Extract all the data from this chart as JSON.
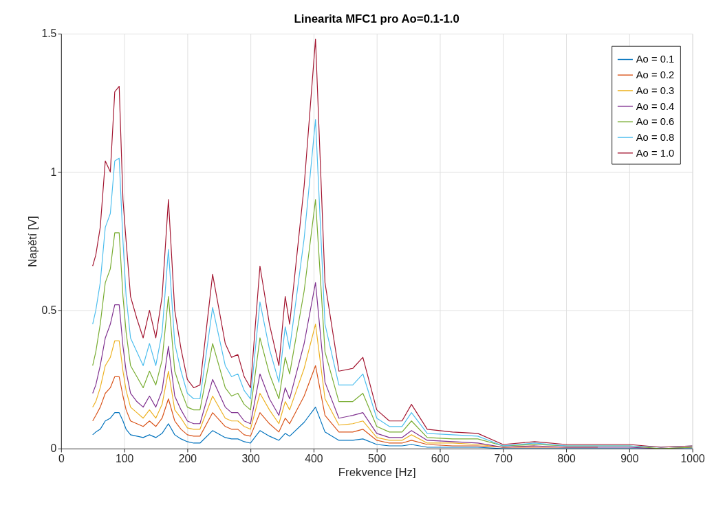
{
  "chart_data": {
    "type": "line",
    "title": "Linearita MFC1 pro Ao=0.1-1.0",
    "xlabel": "Frekvence [Hz]",
    "ylabel": "Napětí [V]",
    "x": [
      50,
      55,
      62,
      70,
      78,
      85,
      92,
      98,
      103,
      110,
      120,
      130,
      140,
      150,
      160,
      170,
      180,
      190,
      200,
      210,
      220,
      240,
      260,
      270,
      280,
      290,
      300,
      315,
      330,
      345,
      355,
      362,
      385,
      403,
      418,
      440,
      462,
      478,
      500,
      520,
      540,
      555,
      580,
      620,
      660,
      700,
      750,
      800,
      850,
      900,
      950,
      1000
    ],
    "xlim": [
      0,
      1000
    ],
    "xticks": [
      0,
      100,
      200,
      300,
      400,
      500,
      600,
      700,
      800,
      900,
      1000
    ],
    "ylim": [
      0,
      1.5
    ],
    "yticks": [
      0,
      0.5,
      1,
      1.5
    ],
    "grid": true,
    "legend": "top right",
    "line_style": "solid",
    "marker": "none",
    "series": [
      {
        "name": "Ao = 0.1",
        "color": "#0072bd",
        "values": [
          0.05,
          0.06,
          0.07,
          0.1,
          0.11,
          0.13,
          0.13,
          0.1,
          0.07,
          0.05,
          0.045,
          0.04,
          0.05,
          0.04,
          0.055,
          0.09,
          0.05,
          0.035,
          0.025,
          0.02,
          0.02,
          0.065,
          0.04,
          0.035,
          0.035,
          0.025,
          0.02,
          0.065,
          0.045,
          0.03,
          0.055,
          0.045,
          0.095,
          0.15,
          0.06,
          0.03,
          0.03,
          0.035,
          0.015,
          0.01,
          0.01,
          0.015,
          0.005,
          0.005,
          0.005,
          0,
          0,
          0,
          0,
          0,
          0,
          0
        ]
      },
      {
        "name": "Ao = 0.2",
        "color": "#d95319",
        "values": [
          0.1,
          0.12,
          0.15,
          0.2,
          0.22,
          0.26,
          0.26,
          0.19,
          0.14,
          0.1,
          0.09,
          0.08,
          0.1,
          0.08,
          0.11,
          0.18,
          0.1,
          0.07,
          0.05,
          0.045,
          0.045,
          0.13,
          0.08,
          0.07,
          0.07,
          0.05,
          0.045,
          0.13,
          0.09,
          0.06,
          0.11,
          0.09,
          0.19,
          0.3,
          0.12,
          0.06,
          0.06,
          0.07,
          0.03,
          0.02,
          0.02,
          0.03,
          0.015,
          0.01,
          0.01,
          0.005,
          0.005,
          0.005,
          0.005,
          null,
          null,
          null
        ]
      },
      {
        "name": "Ao = 0.3",
        "color": "#edb120",
        "values": [
          0.15,
          0.17,
          0.22,
          0.3,
          0.33,
          0.39,
          0.39,
          0.28,
          0.21,
          0.15,
          0.13,
          0.11,
          0.14,
          0.11,
          0.16,
          0.28,
          0.14,
          0.11,
          0.075,
          0.07,
          0.07,
          0.19,
          0.11,
          0.1,
          0.1,
          0.08,
          0.07,
          0.2,
          0.14,
          0.09,
          0.17,
          0.14,
          0.29,
          0.45,
          0.18,
          0.085,
          0.09,
          0.1,
          0.04,
          0.03,
          0.03,
          0.05,
          0.02,
          0.02,
          0.015,
          0.005,
          0.01,
          null,
          null,
          null,
          null,
          null
        ]
      },
      {
        "name": "Ao = 0.4",
        "color": "#7e2f8e",
        "values": [
          0.2,
          0.23,
          0.3,
          0.4,
          0.45,
          0.52,
          0.52,
          0.37,
          0.28,
          0.2,
          0.17,
          0.15,
          0.19,
          0.15,
          0.21,
          0.37,
          0.19,
          0.14,
          0.1,
          0.09,
          0.09,
          0.25,
          0.15,
          0.13,
          0.13,
          0.1,
          0.09,
          0.27,
          0.18,
          0.12,
          0.22,
          0.18,
          0.38,
          0.6,
          0.24,
          0.11,
          0.12,
          0.13,
          0.055,
          0.04,
          0.04,
          0.065,
          0.03,
          0.025,
          0.02,
          0.005,
          0.01,
          0.005,
          0.005,
          0.005,
          0,
          0.005
        ]
      },
      {
        "name": "Ao = 0.6",
        "color": "#77ac30",
        "values": [
          0.3,
          0.35,
          0.45,
          0.6,
          0.65,
          0.78,
          0.78,
          0.55,
          0.42,
          0.3,
          0.26,
          0.22,
          0.28,
          0.23,
          0.32,
          0.55,
          0.28,
          0.21,
          0.15,
          0.14,
          0.14,
          0.38,
          0.22,
          0.19,
          0.2,
          0.16,
          0.14,
          0.4,
          0.27,
          0.18,
          0.33,
          0.27,
          0.57,
          0.9,
          0.35,
          0.17,
          0.17,
          0.2,
          0.08,
          0.06,
          0.06,
          0.1,
          0.04,
          0.035,
          0.035,
          0.01,
          0.015,
          0.01,
          0.01,
          0.01,
          0,
          0.005
        ]
      },
      {
        "name": "Ao = 0.8",
        "color": "#4dbeee",
        "values": [
          0.45,
          0.5,
          0.6,
          0.8,
          0.85,
          1.04,
          1.05,
          0.75,
          0.55,
          0.4,
          0.35,
          0.3,
          0.38,
          0.3,
          0.42,
          0.72,
          0.38,
          0.28,
          0.2,
          0.18,
          0.18,
          0.51,
          0.3,
          0.26,
          0.27,
          0.21,
          0.18,
          0.53,
          0.36,
          0.24,
          0.44,
          0.36,
          0.76,
          1.19,
          0.45,
          0.23,
          0.23,
          0.27,
          0.11,
          0.08,
          0.08,
          0.13,
          0.055,
          0.05,
          0.045,
          0.01,
          0.02,
          0.01,
          0.01,
          0.01,
          0.005,
          0.01
        ]
      },
      {
        "name": "Ao = 1.0",
        "color": "#a2142f",
        "values": [
          0.66,
          0.7,
          0.8,
          1.04,
          1.0,
          1.29,
          1.31,
          0.9,
          0.75,
          0.55,
          0.47,
          0.4,
          0.5,
          0.4,
          0.55,
          0.9,
          0.5,
          0.36,
          0.25,
          0.22,
          0.23,
          0.63,
          0.38,
          0.33,
          0.34,
          0.26,
          0.22,
          0.66,
          0.45,
          0.3,
          0.55,
          0.45,
          0.95,
          1.48,
          0.6,
          0.28,
          0.29,
          0.33,
          0.14,
          0.1,
          0.1,
          0.16,
          0.07,
          0.06,
          0.055,
          0.015,
          0.025,
          0.015,
          0.015,
          0.015,
          0.005,
          0.01
        ]
      }
    ]
  }
}
